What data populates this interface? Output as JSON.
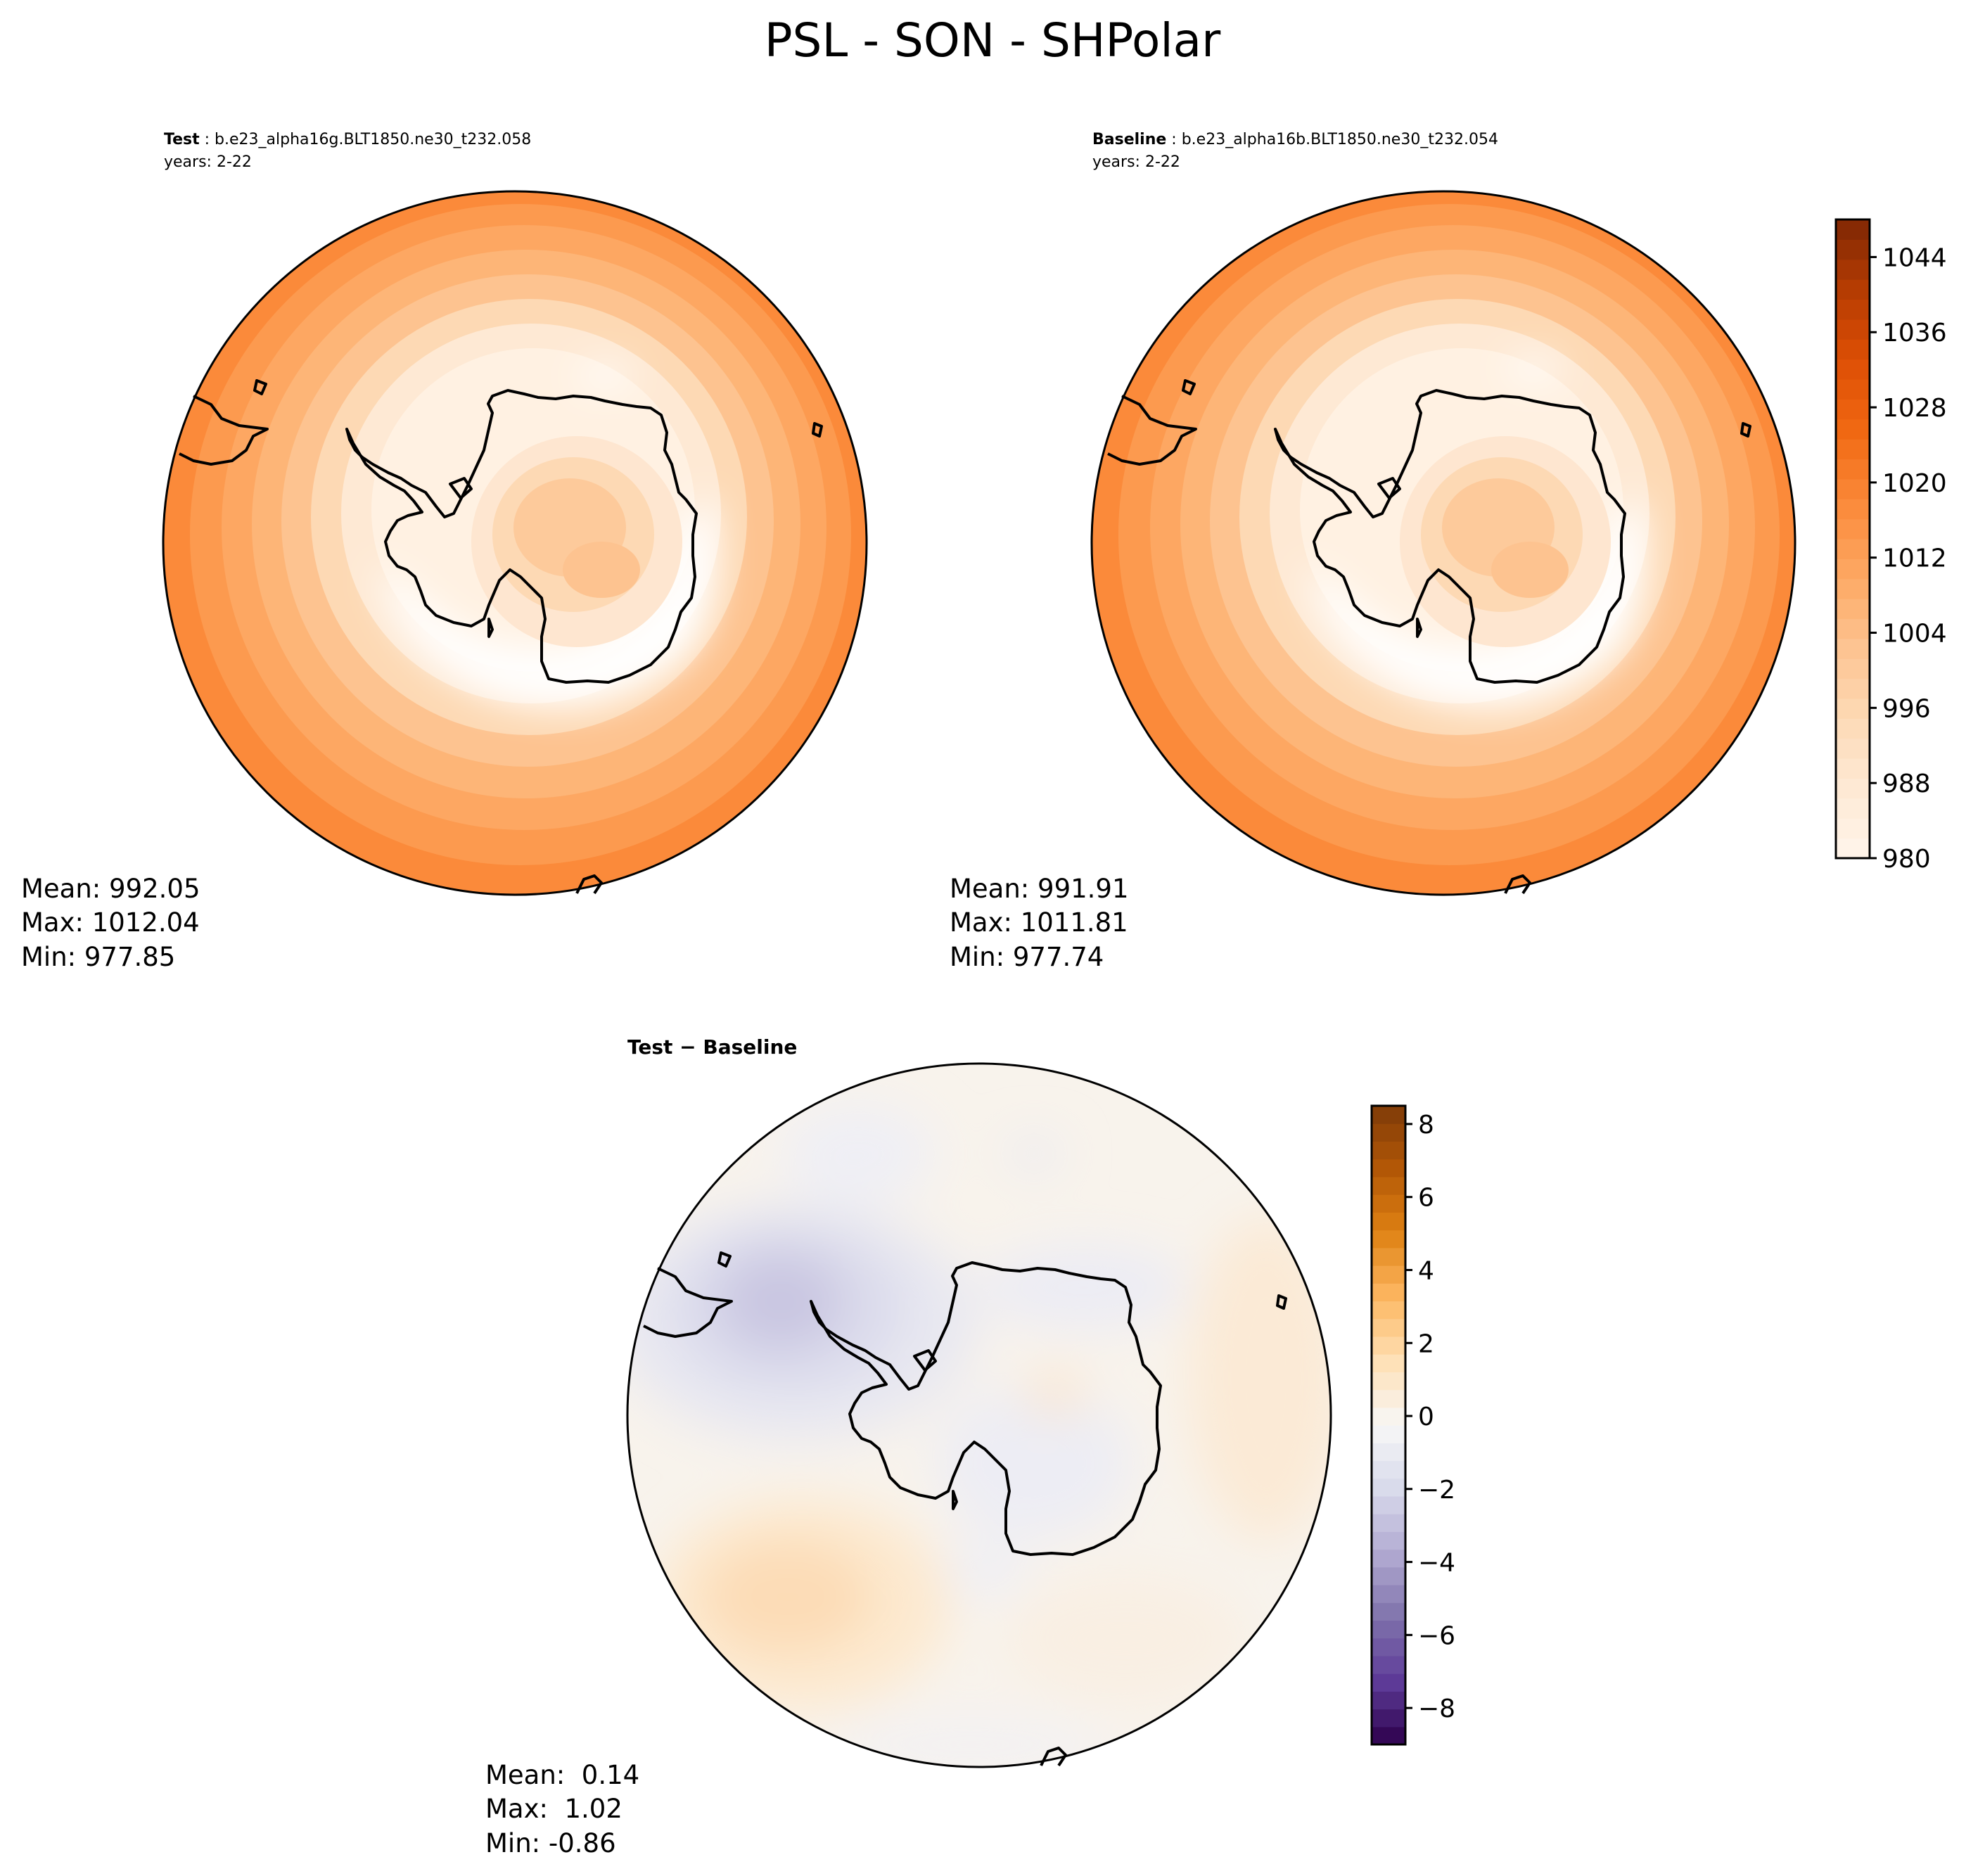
{
  "figure_title": "PSL - SON - SHPolar",
  "colors": {
    "oranges": [
      "#fff5eb",
      "#fee9d4",
      "#fdd9b4",
      "#fdc390",
      "#fda762",
      "#fb8a3a",
      "#f16913",
      "#de4f05",
      "#b63c02",
      "#7f2704"
    ],
    "diff": [
      "#2d004b",
      "#5e3c99",
      "#8073ac",
      "#b2abd2",
      "#d8daeb",
      "#f7f7f7",
      "#fee0b6",
      "#fdb863",
      "#e08214",
      "#b35806",
      "#7f3b08"
    ],
    "coast": "#000000"
  },
  "chart_data": [
    {
      "type": "heatmap",
      "projection": "south-polar-stereographic",
      "label": "Test",
      "case": "b.e23_alpha16g.BLT1850.ne30_t232.058",
      "years": "years: 2-22",
      "stats": {
        "mean": "Mean: 992.05",
        "max": "Max: 1012.04",
        "min": "Min: 977.85"
      },
      "value_range": [
        977.85,
        1012.04
      ]
    },
    {
      "type": "heatmap",
      "projection": "south-polar-stereographic",
      "label": "Baseline",
      "case": "b.e23_alpha16b.BLT1850.ne30_t232.054",
      "years": "years: 2-22",
      "stats": {
        "mean": "Mean: 991.91",
        "max": "Max: 1011.81",
        "min": "Min: 977.74"
      },
      "value_range": [
        977.74,
        1011.81
      ],
      "colorbar": {
        "range": [
          980,
          1048
        ],
        "ticks": [
          "980",
          "988",
          "996",
          "1004",
          "1012",
          "1020",
          "1028",
          "1036",
          "1044"
        ],
        "levels": 32
      }
    },
    {
      "type": "heatmap",
      "projection": "south-polar-stereographic",
      "label": "Test − Baseline",
      "stats": {
        "mean": "Mean:  0.14",
        "max": "Max:  1.02",
        "min": "Min: -0.86"
      },
      "value_range": [
        -0.86,
        1.02
      ],
      "colorbar": {
        "range": [
          -9,
          8.5
        ],
        "ticks": [
          "−8",
          "−6",
          "−4",
          "−2",
          "0",
          "2",
          "4",
          "6",
          "8"
        ],
        "levels": 36
      }
    }
  ]
}
